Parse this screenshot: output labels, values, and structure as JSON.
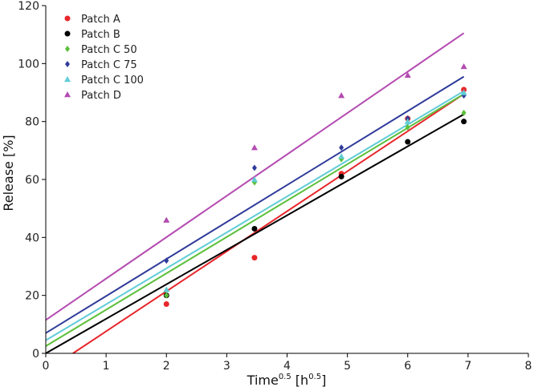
{
  "chart_data": {
    "type": "scatter",
    "xlabel": "Time",
    "xlabel_sup": "0.5",
    "xlabel_unit_open": " [h",
    "xlabel_unit_sup": "0.5",
    "xlabel_unit_close": "]",
    "ylabel": "Release [%]",
    "xlim": [
      0,
      8
    ],
    "ylim": [
      0,
      120
    ],
    "xticks": [
      0,
      1,
      2,
      3,
      4,
      5,
      6,
      7,
      8
    ],
    "yticks": [
      0,
      20,
      40,
      60,
      80,
      100,
      120
    ],
    "grid": false,
    "legend_position": "top-left",
    "series": [
      {
        "name": "Patch A",
        "color": "#e8262a",
        "marker": "circle",
        "x": [
          2,
          3.46,
          4.9,
          6,
          6.93
        ],
        "y": [
          17,
          33,
          62,
          81,
          91
        ],
        "fit": [
          [
            0.45,
            0
          ],
          [
            6.93,
            89.5
          ]
        ]
      },
      {
        "name": "Patch B",
        "color": "#000000",
        "marker": "circle",
        "x": [
          2,
          3.46,
          4.9,
          6,
          6.93
        ],
        "y": [
          20,
          43,
          61,
          73,
          80
        ],
        "fit": [
          [
            0,
            0
          ],
          [
            6.93,
            82.5
          ]
        ]
      },
      {
        "name": "Patch C 50",
        "color": "#5cbf3a",
        "marker": "diamond",
        "x": [
          2,
          3.46,
          4.9,
          6,
          6.93
        ],
        "y": [
          20,
          59,
          67,
          78,
          83
        ],
        "fit": [
          [
            0,
            2.5
          ],
          [
            6.93,
            89.5
          ]
        ]
      },
      {
        "name": "Patch C 75",
        "color": "#2f3b9a",
        "marker": "diamond",
        "x": [
          2,
          3.46,
          4.9,
          6,
          6.93
        ],
        "y": [
          32,
          64,
          71,
          81,
          89
        ],
        "fit": [
          [
            0,
            7
          ],
          [
            6.93,
            95.5
          ]
        ]
      },
      {
        "name": "Patch C 100",
        "color": "#62ccd6",
        "marker": "triangle",
        "x": [
          2,
          3.46,
          4.9,
          6,
          6.93
        ],
        "y": [
          22,
          60,
          68,
          80,
          90
        ],
        "fit": [
          [
            0,
            4.5
          ],
          [
            6.93,
            90.5
          ]
        ]
      },
      {
        "name": "Patch D",
        "color": "#b44bb1",
        "marker": "triangle",
        "x": [
          2,
          3.46,
          4.9,
          6,
          6.93
        ],
        "y": [
          46,
          71,
          89,
          96,
          99
        ],
        "fit": [
          [
            0,
            11.5
          ],
          [
            6.93,
            110.5
          ]
        ]
      }
    ]
  }
}
